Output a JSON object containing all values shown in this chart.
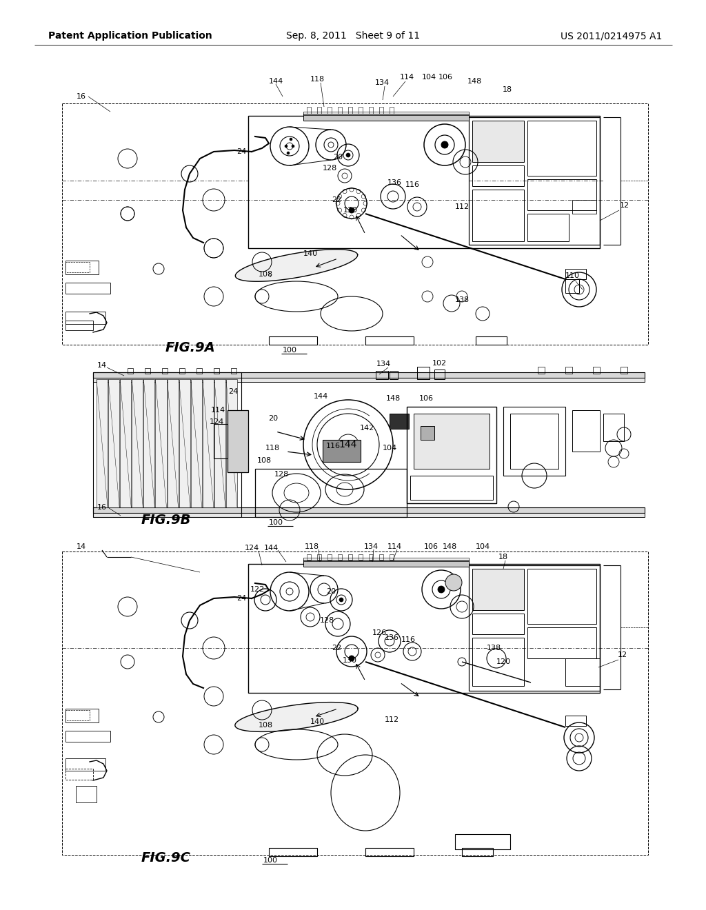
{
  "background_color": "#ffffff",
  "page_width": 10.24,
  "page_height": 13.2,
  "dpi": 100,
  "header_left": "Patent Application Publication",
  "header_mid": "Sep. 8, 2011   Sheet 9 of 11",
  "header_right": "US 2011/0214975 A1",
  "fig9a_label": "FIG.9A",
  "fig9b_label": "FIG.9B",
  "fig9c_label": "FIG.9C"
}
